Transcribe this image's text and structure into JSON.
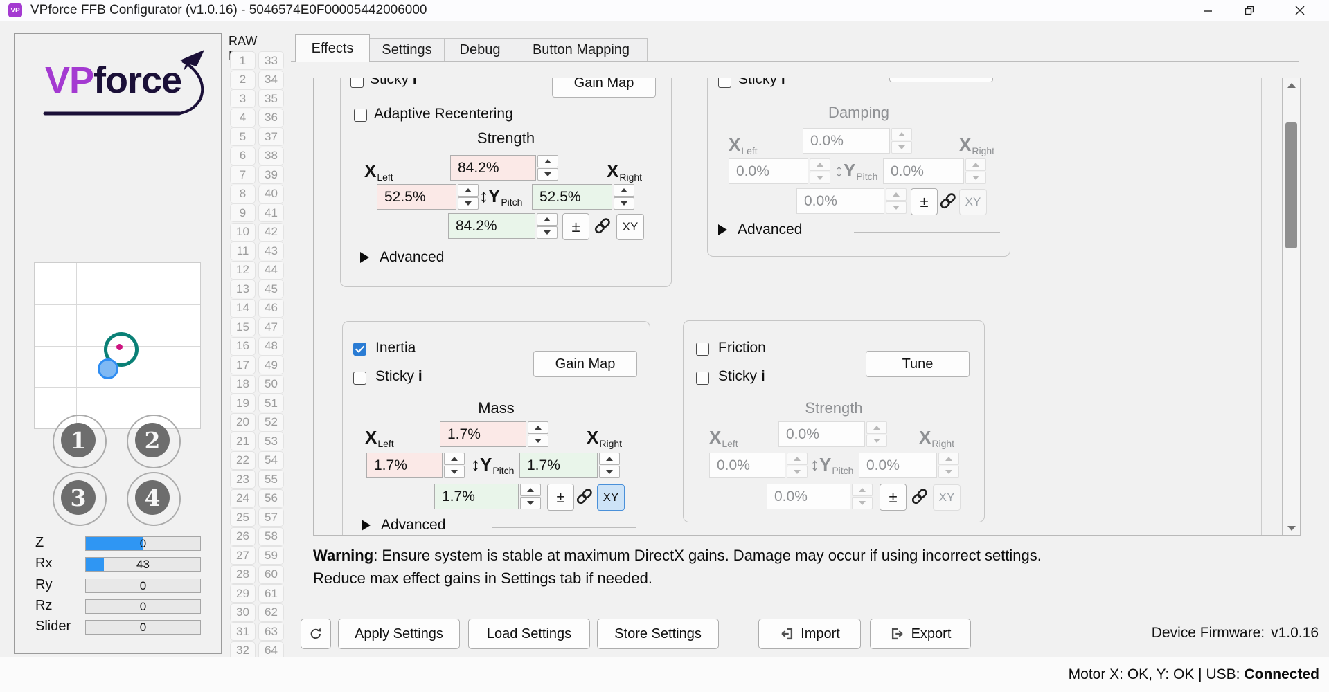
{
  "window": {
    "title": "VPforce FFB Configurator (v1.0.16) - 5046574E0F00005442006000",
    "icon_text": "VP"
  },
  "logo": {
    "vp": "VP",
    "force": "force"
  },
  "raw_btn": {
    "header": "RAW BTN",
    "col1": [
      1,
      2,
      3,
      4,
      5,
      6,
      7,
      8,
      9,
      10,
      11,
      12,
      13,
      14,
      15,
      16,
      17,
      18,
      19,
      20,
      21,
      22,
      23,
      24,
      25,
      26,
      27,
      28,
      29,
      30,
      31,
      32
    ],
    "col2": [
      33,
      34,
      35,
      36,
      37,
      38,
      39,
      40,
      41,
      42,
      43,
      44,
      45,
      46,
      47,
      48,
      49,
      50,
      51,
      52,
      53,
      54,
      55,
      56,
      57,
      58,
      59,
      60,
      61,
      62,
      63,
      64
    ]
  },
  "axes": [
    {
      "label": "Z",
      "value": "0",
      "fill_pct": 50
    },
    {
      "label": "Rx",
      "value": "43",
      "fill_pct": 16
    },
    {
      "label": "Ry",
      "value": "0",
      "fill_pct": 0
    },
    {
      "label": "Rz",
      "value": "0",
      "fill_pct": 0
    },
    {
      "label": "Slider",
      "value": "0",
      "fill_pct": 0
    }
  ],
  "tabs": [
    {
      "label": "Effects",
      "active": true
    },
    {
      "label": "Settings",
      "active": false
    },
    {
      "label": "Debug",
      "active": false
    },
    {
      "label": "Button Mapping",
      "active": false
    }
  ],
  "labels": {
    "x": "X",
    "left": "Left",
    "right": "Right",
    "y_arrow": "↕",
    "y": "Y",
    "pitch": "Pitch",
    "advanced": "Advanced",
    "plus_minus": "±",
    "xy": "XY",
    "sticky": "Sticky",
    "sticky_info": "i"
  },
  "panels": {
    "spring": {
      "sticky": "Sticky",
      "button": "Gain Map",
      "checkbox": "Adaptive Recentering",
      "title": "Strength",
      "values": {
        "up": "84.2%",
        "left": "52.5%",
        "right": "52.5%",
        "down": "84.2%"
      }
    },
    "damping": {
      "sticky": "Sticky",
      "title": "Damping",
      "values": {
        "up": "0.0%",
        "left": "0.0%",
        "right": "0.0%",
        "down": "0.0%"
      }
    },
    "inertia": {
      "name": "Inertia",
      "sticky": "Sticky",
      "button": "Gain Map",
      "title": "Mass",
      "values": {
        "up": "1.7%",
        "left": "1.7%",
        "right": "1.7%",
        "down": "1.7%"
      }
    },
    "friction": {
      "name": "Friction",
      "sticky": "Sticky",
      "button": "Tune",
      "title": "Strength",
      "values": {
        "up": "0.0%",
        "left": "0.0%",
        "right": "0.0%",
        "down": "0.0%"
      }
    }
  },
  "warning": {
    "title": "Warning",
    "line1": ": Ensure system is stable at maximum DirectX gains. Damage may occur if using incorrect settings.",
    "line2": "Reduce max effect gains in Settings tab if needed."
  },
  "footer": {
    "apply": "Apply Settings",
    "load": "Load Settings",
    "store": "Store Settings",
    "import": "Import",
    "export": "Export",
    "firmware_label": "Device Firmware:",
    "firmware_version": "v1.0.16"
  },
  "status": {
    "text": "Motor X: OK, Y: OK | USB:",
    "state": "Connected"
  },
  "colors": {
    "accent_blue": "#2a7cd4",
    "spin_pink": "#fbe9e7",
    "spin_green": "#e9f5ea",
    "ring_teal": "#0a8076",
    "dot_magenta": "#ce1380",
    "dot_blue": "#7fb9f4",
    "logo_purple": "#a43ad1",
    "logo_dark": "#1b1038"
  }
}
